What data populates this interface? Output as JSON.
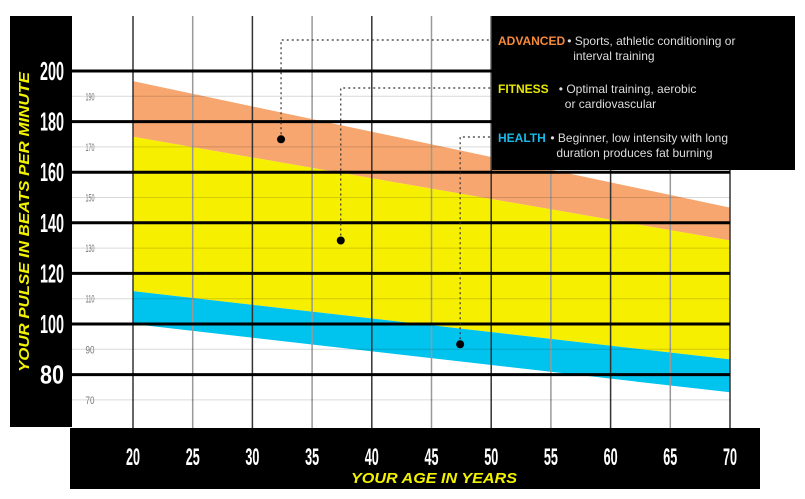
{
  "chart_data": {
    "type": "area",
    "xlabel": "YOUR AGE IN YEARS",
    "ylabel": "YOUR PULSE IN BEATS PER MINUTE",
    "xlim": [
      20,
      70
    ],
    "ylim": [
      60,
      207
    ],
    "x_ticks": [
      "20",
      "25",
      "30",
      "35",
      "40",
      "45",
      "50",
      "55",
      "60",
      "65",
      "70"
    ],
    "y_major_ticks": [
      "200",
      "180",
      "160",
      "140",
      "120",
      "100",
      "80"
    ],
    "y_minor_ticks": [
      "190",
      "170",
      "150",
      "130",
      "110",
      "90",
      "70"
    ],
    "grid": true,
    "legend_position": "top-right",
    "series": [
      {
        "name": "ADVANCED",
        "color": "#f6a66e",
        "x": [
          20,
          70
        ],
        "upper": [
          196,
          146
        ],
        "lower": [
          174,
          133
        ]
      },
      {
        "name": "FITNESS",
        "color": "#f7ef00",
        "x": [
          20,
          70
        ],
        "upper": [
          174,
          133
        ],
        "lower": [
          113,
          86
        ]
      },
      {
        "name": "HEALTH",
        "color": "#00c3ee",
        "x": [
          20,
          70
        ],
        "upper": [
          113,
          86
        ],
        "lower": [
          100,
          73
        ]
      }
    ],
    "markers": [
      {
        "series": "ADVANCED",
        "x": 32.4,
        "y": 173
      },
      {
        "series": "FITNESS",
        "x": 37.4,
        "y": 133
      },
      {
        "series": "HEALTH",
        "x": 47.4,
        "y": 92
      }
    ]
  },
  "legend": [
    {
      "label": "ADVANCED",
      "color": "#f68a3a",
      "lines": [
        "• Sports, athletic conditioning or",
        "interval training"
      ]
    },
    {
      "label": "FITNESS",
      "color": "#e8e800",
      "lines": [
        "• Optimal training, aerobic",
        "or cardiovascular"
      ]
    },
    {
      "label": "HEALTH",
      "color": "#1cb8e8",
      "lines": [
        "• Beginner, low intensity with long",
        "duration produces fat burning"
      ]
    }
  ]
}
